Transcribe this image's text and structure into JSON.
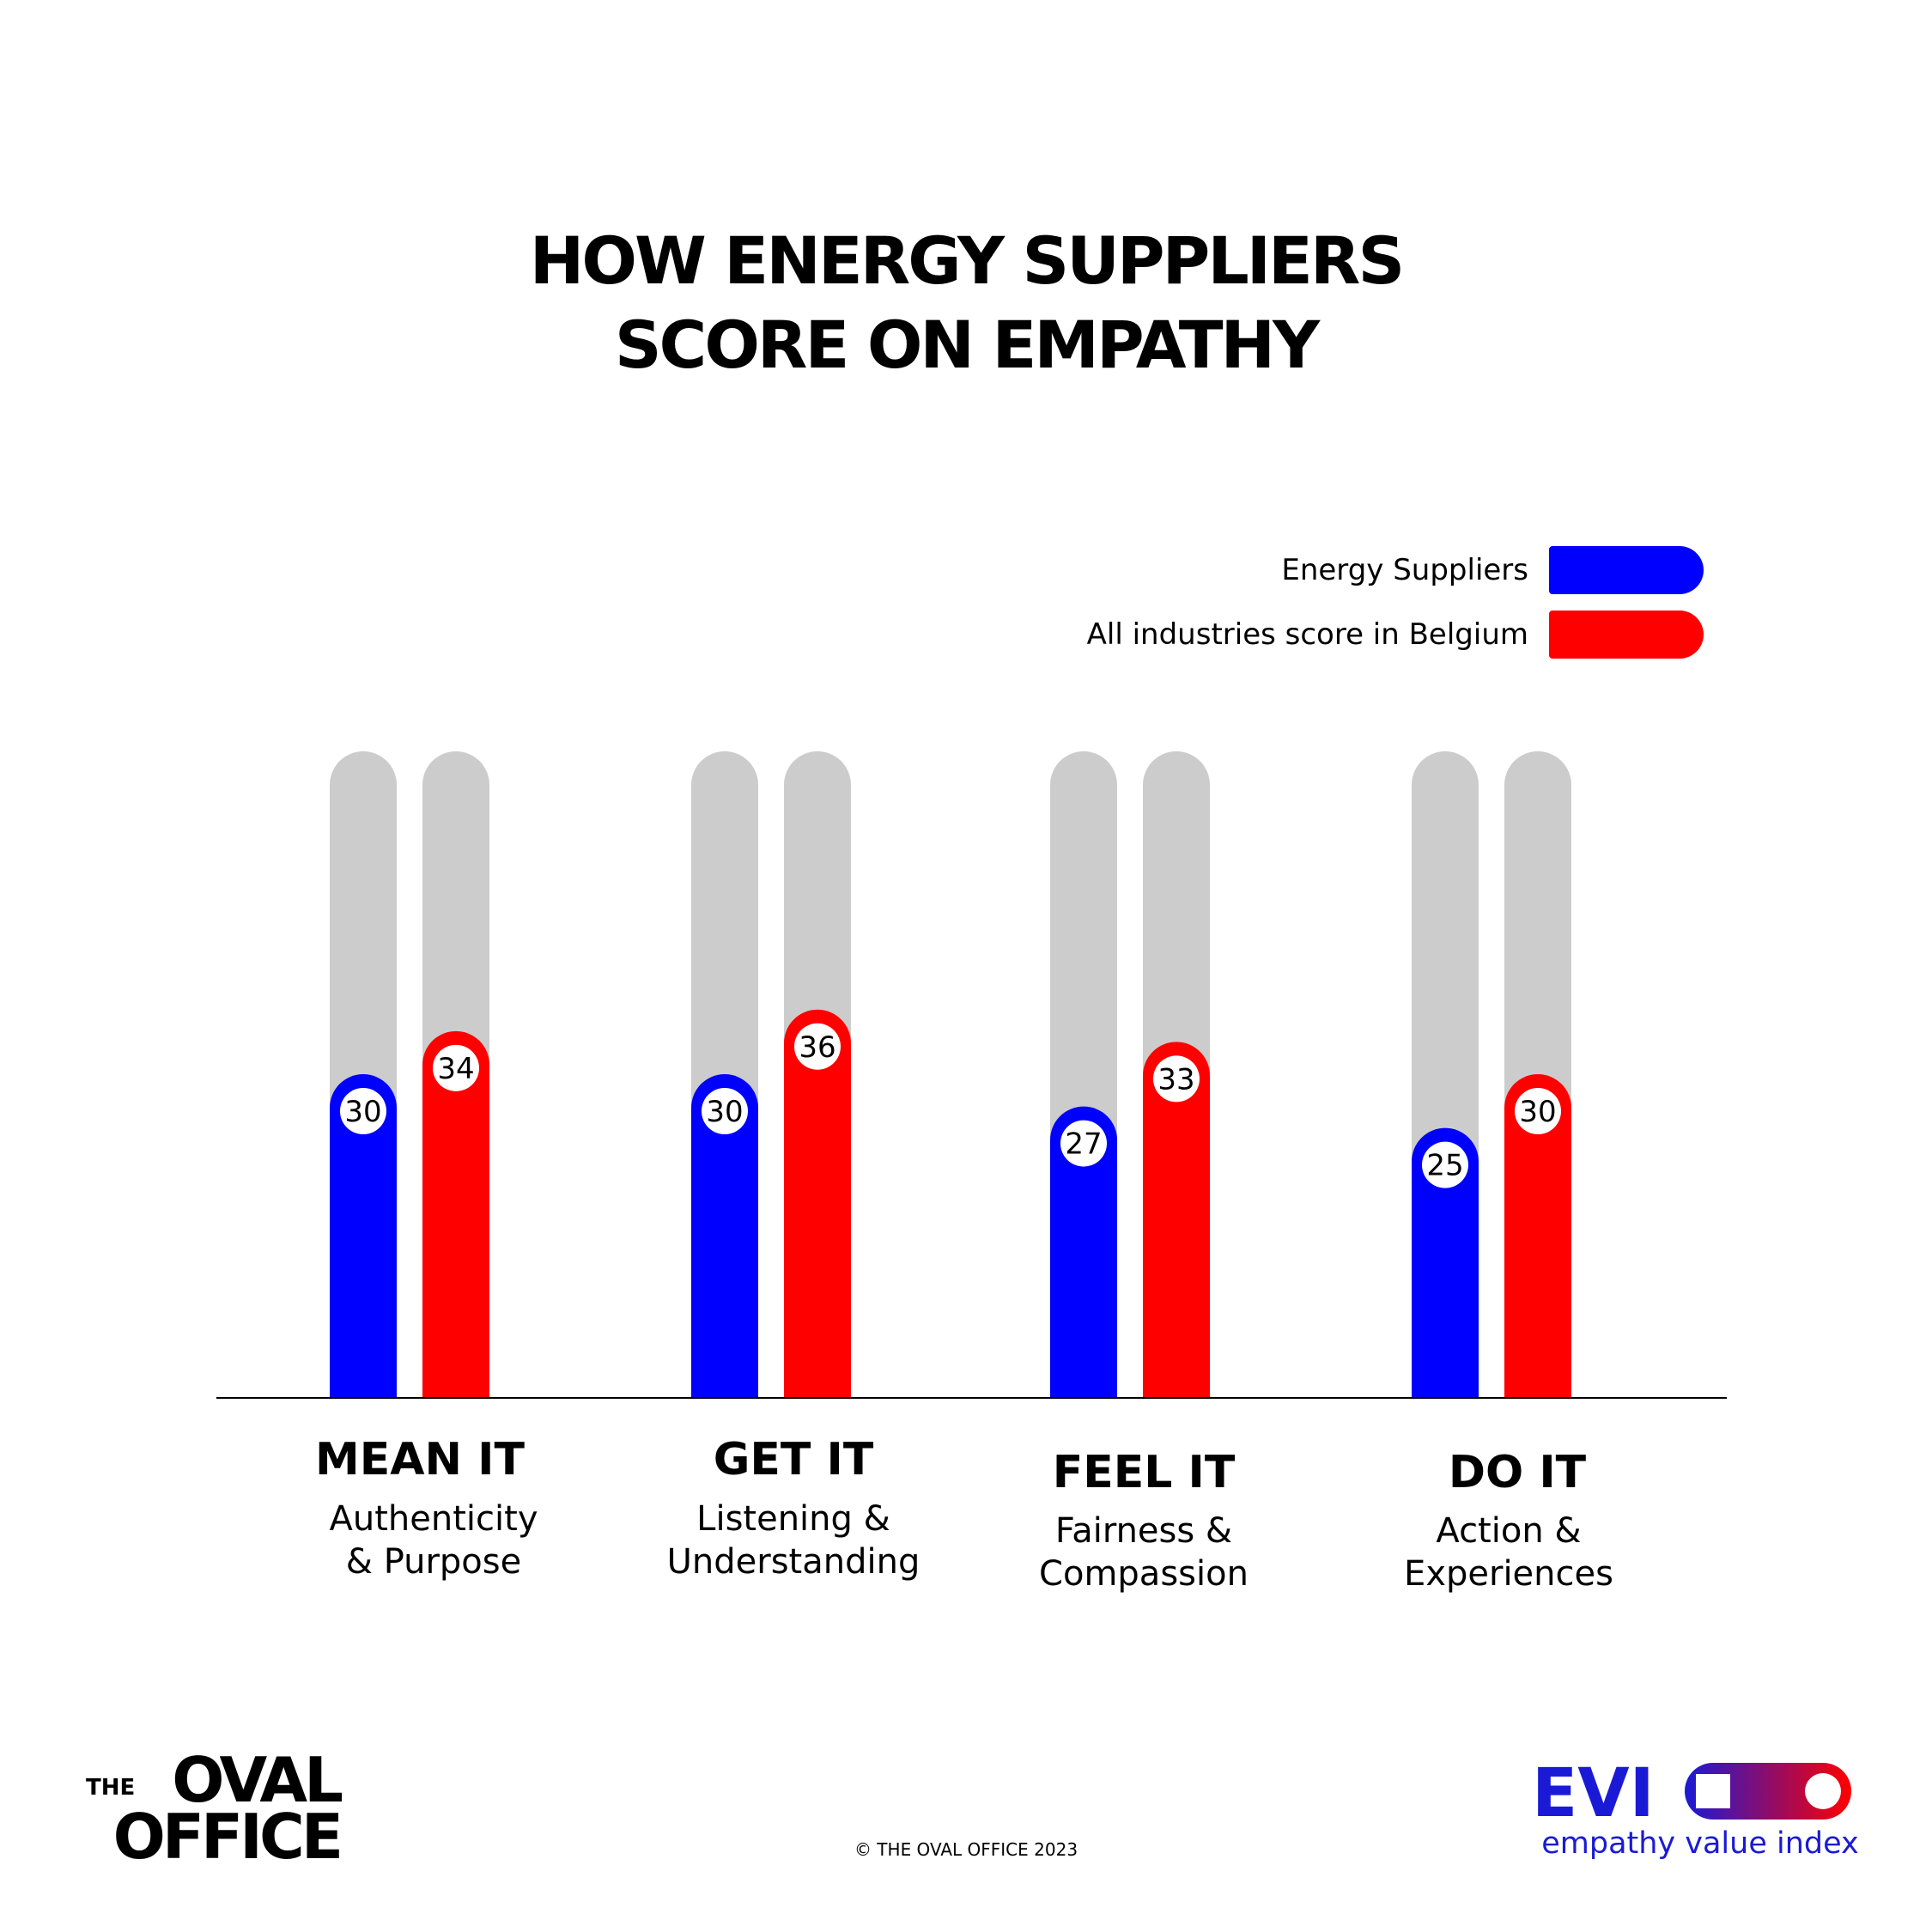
{
  "colors": {
    "series_a": "#0000ff",
    "series_b": "#ff0000",
    "track": "#cccccc",
    "axis": "#000000",
    "evi_blue": "#1a1ad6"
  },
  "title_lines": [
    "HOW ENERGY SUPPLIERS",
    "SCORE ON EMPATHY"
  ],
  "chart_data": {
    "type": "bar",
    "title": "HOW ENERGY SUPPLIERS SCORE ON EMPATHY",
    "categories": [
      "MEAN IT",
      "GET IT",
      "FEEL IT",
      "DO IT"
    ],
    "category_descriptions": [
      [
        "Authenticity",
        "& Purpose"
      ],
      [
        "Listening &",
        "Understanding"
      ],
      [
        "Fairness &",
        "Compassion"
      ],
      [
        "Action &",
        "Experiences"
      ]
    ],
    "series": [
      {
        "name": "Energy Suppliers",
        "color": "#0000ff",
        "values": [
          30,
          30,
          27,
          25
        ]
      },
      {
        "name": "All industries score in Belgium",
        "color": "#ff0000",
        "values": [
          34,
          36,
          33,
          30
        ]
      }
    ],
    "ylim": [
      0,
      60
    ],
    "legend_position": "top-right",
    "xlabel": "",
    "ylabel": ""
  },
  "logo_left": {
    "line1_small": "THE",
    "line1_big": "OVAL",
    "line2": "OFFICE"
  },
  "copyright": "© THE OVAL OFFICE 2023",
  "logo_right": {
    "mark": "EVI",
    "subtitle": "empathy value index"
  }
}
